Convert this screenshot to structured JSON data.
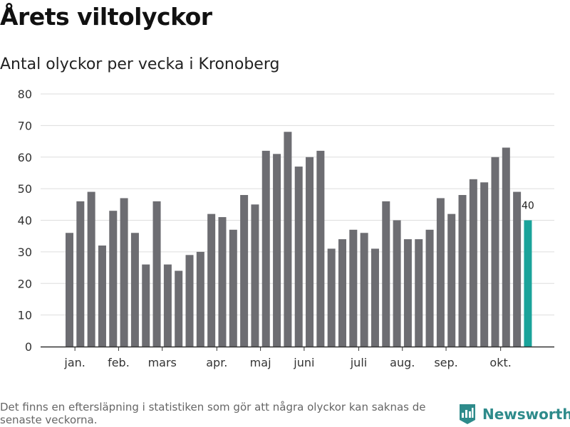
{
  "header": {
    "title": "Årets viltolyckor",
    "subtitle": "Antal olyckor per vecka i Kronoberg"
  },
  "footer": {
    "note": "Det finns en eftersläpning i statistiken som gör att några olyckor kan saknas de senaste veckorna.",
    "brand": "Newsworthy"
  },
  "colors": {
    "bar": "#6d6d72",
    "highlight": "#1aa39a",
    "grid": "#dddddd",
    "axis": "#333333",
    "brand": "#2e8b8b"
  },
  "chart_data": {
    "type": "bar",
    "title": "Antal olyckor per vecka i Kronoberg",
    "xlabel": "",
    "ylabel": "",
    "ylim": [
      0,
      80
    ],
    "yticks": [
      0,
      10,
      20,
      30,
      40,
      50,
      60,
      70,
      80
    ],
    "grid": true,
    "values": [
      36,
      46,
      49,
      32,
      43,
      47,
      36,
      26,
      46,
      26,
      24,
      29,
      30,
      42,
      41,
      37,
      48,
      45,
      62,
      61,
      68,
      57,
      60,
      62,
      31,
      34,
      37,
      36,
      31,
      46,
      40,
      34,
      34,
      37,
      47,
      42,
      48,
      53,
      52,
      60,
      63,
      49,
      40
    ],
    "month_labels": [
      {
        "label": "jan.",
        "week_index": 0.5
      },
      {
        "label": "feb.",
        "week_index": 4.5
      },
      {
        "label": "mars",
        "week_index": 8.5
      },
      {
        "label": "apr.",
        "week_index": 13.5
      },
      {
        "label": "maj",
        "week_index": 17.5
      },
      {
        "label": "juni",
        "week_index": 21.5
      },
      {
        "label": "juli",
        "week_index": 26.5
      },
      {
        "label": "aug.",
        "week_index": 30.5
      },
      {
        "label": "sep.",
        "week_index": 34.5
      },
      {
        "label": "okt.",
        "week_index": 39.5
      }
    ],
    "highlight_index": 42,
    "highlight_label": "40"
  }
}
